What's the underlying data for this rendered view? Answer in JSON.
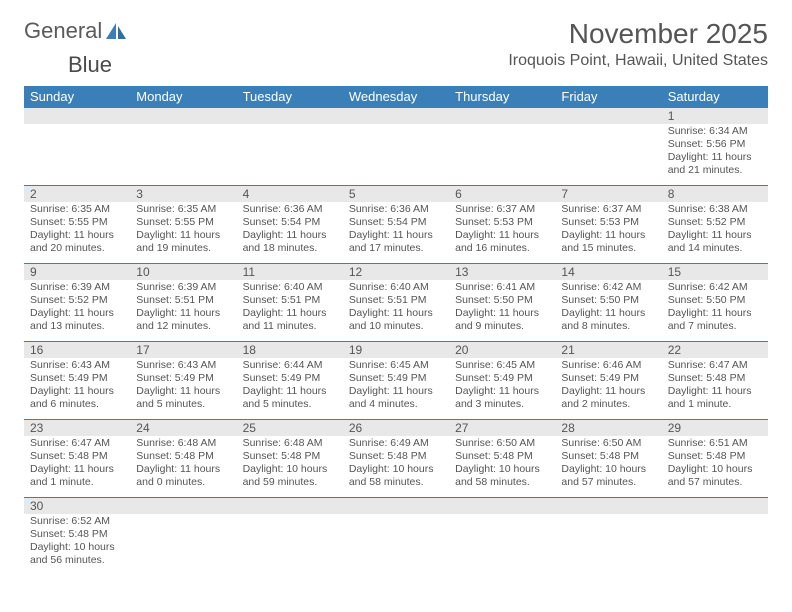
{
  "logo": {
    "text1": "General",
    "text2": "Blue"
  },
  "title": "November 2025",
  "location": "Iroquois Point, Hawaii, United States",
  "colors": {
    "header_bg": "#3b7fb8",
    "daynum_bg": "#e8e8e8",
    "text": "#555555",
    "logo_blue": "#3b7fb8"
  },
  "weekdays": [
    "Sunday",
    "Monday",
    "Tuesday",
    "Wednesday",
    "Thursday",
    "Friday",
    "Saturday"
  ],
  "days": [
    {
      "n": "1",
      "sunrise": "6:34 AM",
      "sunset": "5:56 PM",
      "daylight": "11 hours and 21 minutes."
    },
    {
      "n": "2",
      "sunrise": "6:35 AM",
      "sunset": "5:55 PM",
      "daylight": "11 hours and 20 minutes."
    },
    {
      "n": "3",
      "sunrise": "6:35 AM",
      "sunset": "5:55 PM",
      "daylight": "11 hours and 19 minutes."
    },
    {
      "n": "4",
      "sunrise": "6:36 AM",
      "sunset": "5:54 PM",
      "daylight": "11 hours and 18 minutes."
    },
    {
      "n": "5",
      "sunrise": "6:36 AM",
      "sunset": "5:54 PM",
      "daylight": "11 hours and 17 minutes."
    },
    {
      "n": "6",
      "sunrise": "6:37 AM",
      "sunset": "5:53 PM",
      "daylight": "11 hours and 16 minutes."
    },
    {
      "n": "7",
      "sunrise": "6:37 AM",
      "sunset": "5:53 PM",
      "daylight": "11 hours and 15 minutes."
    },
    {
      "n": "8",
      "sunrise": "6:38 AM",
      "sunset": "5:52 PM",
      "daylight": "11 hours and 14 minutes."
    },
    {
      "n": "9",
      "sunrise": "6:39 AM",
      "sunset": "5:52 PM",
      "daylight": "11 hours and 13 minutes."
    },
    {
      "n": "10",
      "sunrise": "6:39 AM",
      "sunset": "5:51 PM",
      "daylight": "11 hours and 12 minutes."
    },
    {
      "n": "11",
      "sunrise": "6:40 AM",
      "sunset": "5:51 PM",
      "daylight": "11 hours and 11 minutes."
    },
    {
      "n": "12",
      "sunrise": "6:40 AM",
      "sunset": "5:51 PM",
      "daylight": "11 hours and 10 minutes."
    },
    {
      "n": "13",
      "sunrise": "6:41 AM",
      "sunset": "5:50 PM",
      "daylight": "11 hours and 9 minutes."
    },
    {
      "n": "14",
      "sunrise": "6:42 AM",
      "sunset": "5:50 PM",
      "daylight": "11 hours and 8 minutes."
    },
    {
      "n": "15",
      "sunrise": "6:42 AM",
      "sunset": "5:50 PM",
      "daylight": "11 hours and 7 minutes."
    },
    {
      "n": "16",
      "sunrise": "6:43 AM",
      "sunset": "5:49 PM",
      "daylight": "11 hours and 6 minutes."
    },
    {
      "n": "17",
      "sunrise": "6:43 AM",
      "sunset": "5:49 PM",
      "daylight": "11 hours and 5 minutes."
    },
    {
      "n": "18",
      "sunrise": "6:44 AM",
      "sunset": "5:49 PM",
      "daylight": "11 hours and 5 minutes."
    },
    {
      "n": "19",
      "sunrise": "6:45 AM",
      "sunset": "5:49 PM",
      "daylight": "11 hours and 4 minutes."
    },
    {
      "n": "20",
      "sunrise": "6:45 AM",
      "sunset": "5:49 PM",
      "daylight": "11 hours and 3 minutes."
    },
    {
      "n": "21",
      "sunrise": "6:46 AM",
      "sunset": "5:49 PM",
      "daylight": "11 hours and 2 minutes."
    },
    {
      "n": "22",
      "sunrise": "6:47 AM",
      "sunset": "5:48 PM",
      "daylight": "11 hours and 1 minute."
    },
    {
      "n": "23",
      "sunrise": "6:47 AM",
      "sunset": "5:48 PM",
      "daylight": "11 hours and 1 minute."
    },
    {
      "n": "24",
      "sunrise": "6:48 AM",
      "sunset": "5:48 PM",
      "daylight": "11 hours and 0 minutes."
    },
    {
      "n": "25",
      "sunrise": "6:48 AM",
      "sunset": "5:48 PM",
      "daylight": "10 hours and 59 minutes."
    },
    {
      "n": "26",
      "sunrise": "6:49 AM",
      "sunset": "5:48 PM",
      "daylight": "10 hours and 58 minutes."
    },
    {
      "n": "27",
      "sunrise": "6:50 AM",
      "sunset": "5:48 PM",
      "daylight": "10 hours and 58 minutes."
    },
    {
      "n": "28",
      "sunrise": "6:50 AM",
      "sunset": "5:48 PM",
      "daylight": "10 hours and 57 minutes."
    },
    {
      "n": "29",
      "sunrise": "6:51 AM",
      "sunset": "5:48 PM",
      "daylight": "10 hours and 57 minutes."
    },
    {
      "n": "30",
      "sunrise": "6:52 AM",
      "sunset": "5:48 PM",
      "daylight": "10 hours and 56 minutes."
    }
  ],
  "labels": {
    "sunrise": "Sunrise: ",
    "sunset": "Sunset: ",
    "daylight": "Daylight: "
  },
  "layout": {
    "first_day_column": 6,
    "columns": 7
  }
}
